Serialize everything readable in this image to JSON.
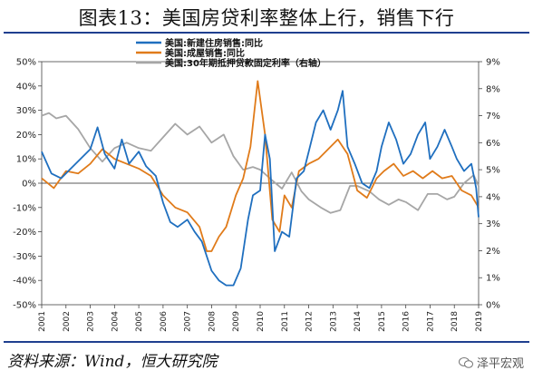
{
  "header": {
    "title": "图表13：美国房贷利率整体上行，销售下行"
  },
  "footer": {
    "source": "资料来源：Wind，恒大研究院",
    "watermark": "泽平宏观",
    "watermark_icon": "wechat-icon"
  },
  "colors": {
    "new_home": "#1f6fbf",
    "existing_home": "#e07b1a",
    "mortgage": "#a6a6a6",
    "rule": "#1f3f8f"
  },
  "chart_data": {
    "type": "line",
    "legend_position": "top",
    "grid": false,
    "x_ticks": [
      "2001",
      "2002",
      "2003",
      "2004",
      "2005",
      "2006",
      "2007",
      "2008",
      "2009",
      "2010",
      "2011",
      "2012",
      "2013",
      "2014",
      "2015",
      "2016",
      "2017",
      "2018",
      "2019"
    ],
    "xlim": [
      2001,
      2019
    ],
    "ylim_left": [
      -50,
      50
    ],
    "ylim_right": [
      0,
      9
    ],
    "y_ticks_left": [
      "-50%",
      "-40%",
      "-30%",
      "-20%",
      "-10%",
      "0%",
      "10%",
      "20%",
      "30%",
      "40%",
      "50%"
    ],
    "y_ticks_right": [
      "0%",
      "1%",
      "2%",
      "3%",
      "4%",
      "5%",
      "6%",
      "7%",
      "8%",
      "9%"
    ],
    "series": [
      {
        "name": "美国:新建住房销售:同比",
        "axis": "left",
        "color": "#1f6fbf",
        "points": [
          [
            2001.0,
            13
          ],
          [
            2001.4,
            4
          ],
          [
            2001.8,
            2
          ],
          [
            2002.2,
            6
          ],
          [
            2002.6,
            10
          ],
          [
            2003.0,
            14
          ],
          [
            2003.3,
            23
          ],
          [
            2003.6,
            12
          ],
          [
            2004.0,
            6
          ],
          [
            2004.3,
            18
          ],
          [
            2004.6,
            8
          ],
          [
            2005.0,
            13
          ],
          [
            2005.3,
            7
          ],
          [
            2005.7,
            3
          ],
          [
            2006.0,
            -8
          ],
          [
            2006.3,
            -16
          ],
          [
            2006.6,
            -18
          ],
          [
            2007.0,
            -15
          ],
          [
            2007.3,
            -20
          ],
          [
            2007.6,
            -24
          ],
          [
            2008.0,
            -36
          ],
          [
            2008.3,
            -40
          ],
          [
            2008.6,
            -42
          ],
          [
            2008.9,
            -42
          ],
          [
            2009.2,
            -35
          ],
          [
            2009.5,
            -15
          ],
          [
            2009.7,
            -5
          ],
          [
            2010.0,
            -3
          ],
          [
            2010.2,
            20
          ],
          [
            2010.4,
            10
          ],
          [
            2010.6,
            -28
          ],
          [
            2010.9,
            -20
          ],
          [
            2011.2,
            -22
          ],
          [
            2011.5,
            2
          ],
          [
            2011.8,
            5
          ],
          [
            2012.0,
            13
          ],
          [
            2012.3,
            25
          ],
          [
            2012.6,
            30
          ],
          [
            2012.9,
            22
          ],
          [
            2013.2,
            30
          ],
          [
            2013.4,
            38
          ],
          [
            2013.6,
            15
          ],
          [
            2013.9,
            8
          ],
          [
            2014.2,
            0
          ],
          [
            2014.5,
            -2
          ],
          [
            2014.8,
            5
          ],
          [
            2015.0,
            15
          ],
          [
            2015.3,
            25
          ],
          [
            2015.6,
            18
          ],
          [
            2015.9,
            8
          ],
          [
            2016.2,
            12
          ],
          [
            2016.5,
            20
          ],
          [
            2016.8,
            25
          ],
          [
            2017.0,
            10
          ],
          [
            2017.3,
            15
          ],
          [
            2017.6,
            22
          ],
          [
            2017.9,
            15
          ],
          [
            2018.1,
            10
          ],
          [
            2018.4,
            5
          ],
          [
            2018.7,
            8
          ],
          [
            2018.9,
            -2
          ],
          [
            2019.0,
            -14
          ]
        ]
      },
      {
        "name": "美国:成屋销售:同比",
        "axis": "left",
        "color": "#e07b1a",
        "points": [
          [
            2001.0,
            2
          ],
          [
            2001.5,
            -2
          ],
          [
            2002.0,
            5
          ],
          [
            2002.5,
            4
          ],
          [
            2003.0,
            8
          ],
          [
            2003.5,
            14
          ],
          [
            2004.0,
            10
          ],
          [
            2004.5,
            8
          ],
          [
            2005.0,
            6
          ],
          [
            2005.5,
            3
          ],
          [
            2006.0,
            -5
          ],
          [
            2006.5,
            -10
          ],
          [
            2007.0,
            -12
          ],
          [
            2007.5,
            -18
          ],
          [
            2007.8,
            -28
          ],
          [
            2008.0,
            -28
          ],
          [
            2008.3,
            -22
          ],
          [
            2008.6,
            -18
          ],
          [
            2009.0,
            -5
          ],
          [
            2009.3,
            2
          ],
          [
            2009.6,
            15
          ],
          [
            2009.9,
            42
          ],
          [
            2010.2,
            20
          ],
          [
            2010.5,
            -15
          ],
          [
            2010.8,
            -20
          ],
          [
            2011.0,
            -5
          ],
          [
            2011.3,
            -10
          ],
          [
            2011.6,
            5
          ],
          [
            2012.0,
            8
          ],
          [
            2012.4,
            10
          ],
          [
            2012.8,
            14
          ],
          [
            2013.2,
            18
          ],
          [
            2013.6,
            12
          ],
          [
            2014.0,
            -3
          ],
          [
            2014.4,
            -6
          ],
          [
            2014.8,
            2
          ],
          [
            2015.1,
            5
          ],
          [
            2015.5,
            8
          ],
          [
            2015.9,
            3
          ],
          [
            2016.3,
            5
          ],
          [
            2016.7,
            2
          ],
          [
            2017.1,
            5
          ],
          [
            2017.5,
            2
          ],
          [
            2017.9,
            3
          ],
          [
            2018.3,
            -3
          ],
          [
            2018.7,
            -5
          ],
          [
            2019.0,
            -10
          ]
        ]
      },
      {
        "name": "美国:30年期抵押贷款固定利率（右轴）",
        "axis": "right",
        "color": "#a6a6a6",
        "points": [
          [
            2001.0,
            7.0
          ],
          [
            2001.3,
            7.1
          ],
          [
            2001.6,
            6.9
          ],
          [
            2002.0,
            7.0
          ],
          [
            2002.5,
            6.5
          ],
          [
            2003.0,
            5.8
          ],
          [
            2003.5,
            5.3
          ],
          [
            2004.0,
            5.8
          ],
          [
            2004.5,
            6.0
          ],
          [
            2005.0,
            5.8
          ],
          [
            2005.5,
            5.7
          ],
          [
            2006.0,
            6.2
          ],
          [
            2006.5,
            6.7
          ],
          [
            2007.0,
            6.3
          ],
          [
            2007.5,
            6.6
          ],
          [
            2008.0,
            6.0
          ],
          [
            2008.5,
            6.3
          ],
          [
            2008.9,
            5.5
          ],
          [
            2009.3,
            5.0
          ],
          [
            2009.7,
            5.1
          ],
          [
            2010.0,
            5.0
          ],
          [
            2010.5,
            4.6
          ],
          [
            2010.9,
            4.3
          ],
          [
            2011.3,
            4.9
          ],
          [
            2011.7,
            4.2
          ],
          [
            2012.0,
            3.9
          ],
          [
            2012.5,
            3.6
          ],
          [
            2012.9,
            3.4
          ],
          [
            2013.3,
            3.5
          ],
          [
            2013.7,
            4.4
          ],
          [
            2014.0,
            4.4
          ],
          [
            2014.5,
            4.2
          ],
          [
            2014.9,
            3.9
          ],
          [
            2015.3,
            3.7
          ],
          [
            2015.7,
            3.9
          ],
          [
            2016.0,
            3.8
          ],
          [
            2016.5,
            3.5
          ],
          [
            2016.9,
            4.1
          ],
          [
            2017.3,
            4.1
          ],
          [
            2017.7,
            3.9
          ],
          [
            2018.0,
            4.0
          ],
          [
            2018.4,
            4.5
          ],
          [
            2018.8,
            4.8
          ],
          [
            2019.0,
            4.4
          ]
        ]
      }
    ]
  }
}
